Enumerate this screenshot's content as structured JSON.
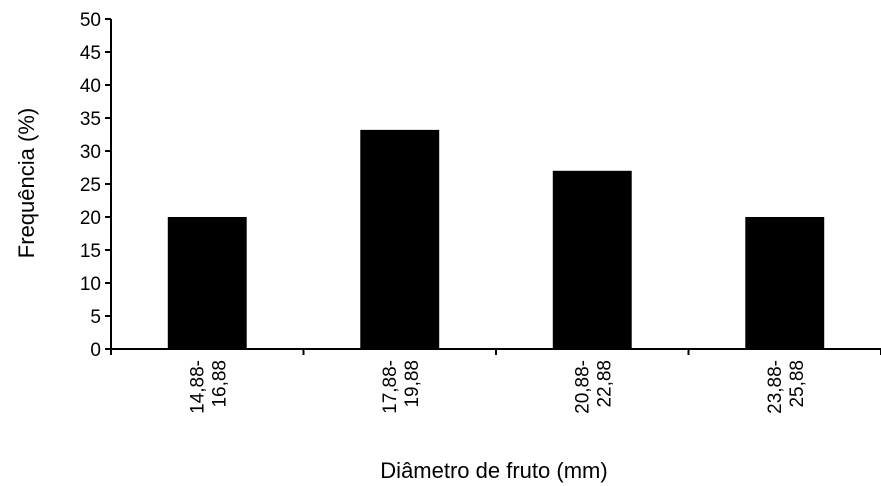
{
  "chart_data": {
    "type": "bar",
    "categories": [
      [
        "14,88-",
        "16,88"
      ],
      [
        "17,88-",
        "19,88"
      ],
      [
        "20,88-",
        "22,88"
      ],
      [
        "23,88-",
        "25,88"
      ]
    ],
    "values": [
      20,
      33.2,
      27,
      20
    ],
    "title": "",
    "xlabel": "Diâmetro de fruto (mm)",
    "ylabel": "Frequência (%)",
    "ylim": [
      0,
      50
    ],
    "yticks": [
      0,
      5,
      10,
      15,
      20,
      25,
      30,
      35,
      40,
      45,
      50
    ],
    "bar_color": "#000000",
    "grid": false,
    "legend": "none"
  }
}
